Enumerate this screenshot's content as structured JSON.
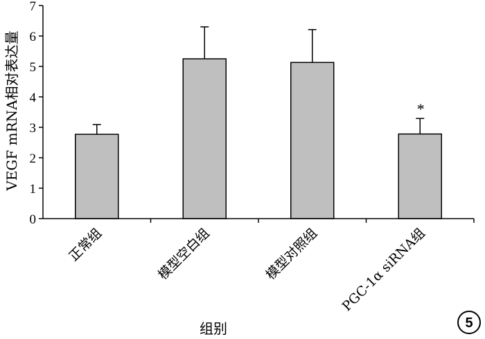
{
  "chart_data": {
    "type": "bar",
    "categories": [
      "正常组",
      "模型空白组",
      "模型对照组",
      "PGC-1α siRNA组"
    ],
    "values": [
      2.77,
      5.25,
      5.13,
      2.78
    ],
    "errors": [
      0.32,
      1.05,
      1.08,
      0.51
    ],
    "significance": [
      "",
      "",
      "",
      "*"
    ],
    "xlabel": "组别",
    "ylabel": "VEGF mRNA相对表达量",
    "ylim": [
      0,
      7
    ],
    "yticks": [
      "0",
      "1",
      "2",
      "3",
      "4",
      "5",
      "6",
      "7"
    ],
    "bar_color": "#bfbfbf",
    "grid": false,
    "legend": "none"
  },
  "figure_badge": "5"
}
